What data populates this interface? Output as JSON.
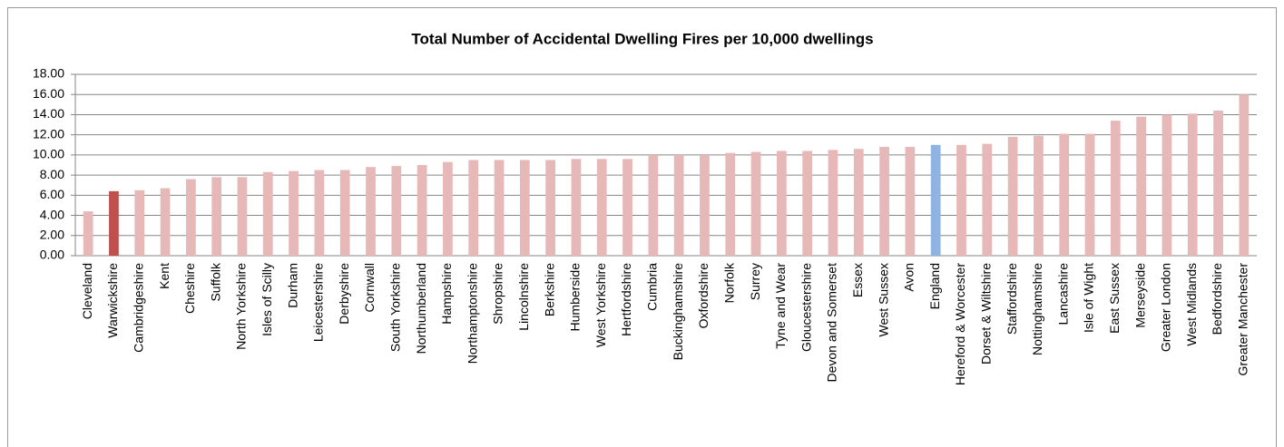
{
  "chart_data": {
    "type": "bar",
    "title": "Total Number of Accidental Dwelling Fires per 10,000 dwellings",
    "categories": [
      "Cleveland",
      "Warwickshire",
      "Cambridgeshire",
      "Kent",
      "Cheshire",
      "Suffolk",
      "North Yorkshire",
      "Isles of Scilly",
      "Durham",
      "Leicestershire",
      "Derbyshire",
      "Cornwall",
      "South Yorkshire",
      "Northumberland",
      "Hampshire",
      "Northamptonshire",
      "Shropshire",
      "Lincolnshire",
      "Berkshire",
      "Humberside",
      "West Yorkshire",
      "Hertfordshire",
      "Cumbria",
      "Buckinghamshire",
      "Oxfordshire",
      "Norfolk",
      "Surrey",
      "Tyne and Wear",
      "Gloucestershire",
      "Devon and Somerset",
      "Essex",
      "West Sussex",
      "Avon",
      "England",
      "Hereford & Worcester",
      "Dorset & Wiltshire",
      "Staffordshire",
      "Nottinghamshire",
      "Lancashire",
      "Isle of Wight",
      "East Sussex",
      "Merseyside",
      "Greater London",
      "West Midlands",
      "Bedfordshire",
      "Greater Manchester"
    ],
    "values": [
      4.4,
      6.4,
      6.5,
      6.7,
      7.6,
      7.8,
      7.8,
      8.3,
      8.4,
      8.5,
      8.5,
      8.8,
      8.9,
      9.0,
      9.3,
      9.5,
      9.5,
      9.5,
      9.5,
      9.6,
      9.6,
      9.6,
      10.0,
      10.0,
      10.0,
      10.2,
      10.3,
      10.4,
      10.4,
      10.5,
      10.6,
      10.8,
      10.8,
      11.0,
      11.0,
      11.1,
      11.8,
      11.9,
      12.1,
      12.1,
      13.4,
      13.8,
      14.0,
      14.1,
      14.4,
      16.0
    ],
    "colors": [
      "#e6b9b8",
      "#c0504d",
      "#e6b9b8",
      "#e6b9b8",
      "#e6b9b8",
      "#e6b9b8",
      "#e6b9b8",
      "#e6b9b8",
      "#e6b9b8",
      "#e6b9b8",
      "#e6b9b8",
      "#e6b9b8",
      "#e6b9b8",
      "#e6b9b8",
      "#e6b9b8",
      "#e6b9b8",
      "#e6b9b8",
      "#e6b9b8",
      "#e6b9b8",
      "#e6b9b8",
      "#e6b9b8",
      "#e6b9b8",
      "#e6b9b8",
      "#e6b9b8",
      "#e6b9b8",
      "#e6b9b8",
      "#e6b9b8",
      "#e6b9b8",
      "#e6b9b8",
      "#e6b9b8",
      "#e6b9b8",
      "#e6b9b8",
      "#e6b9b8",
      "#8db4e2",
      "#e6b9b8",
      "#e6b9b8",
      "#e6b9b8",
      "#e6b9b8",
      "#e6b9b8",
      "#e6b9b8",
      "#e6b9b8",
      "#e6b9b8",
      "#e6b9b8",
      "#e6b9b8",
      "#e6b9b8",
      "#e6b9b8"
    ],
    "ylim": [
      0,
      18
    ],
    "yticks": [
      {
        "value": 0,
        "label": "0.00"
      },
      {
        "value": 2,
        "label": "2.00"
      },
      {
        "value": 4,
        "label": "4.00"
      },
      {
        "value": 6,
        "label": "6.00"
      },
      {
        "value": 8,
        "label": "8.00"
      },
      {
        "value": 10,
        "label": "10.00"
      },
      {
        "value": 12,
        "label": "12.00"
      },
      {
        "value": 14,
        "label": "14.00"
      },
      {
        "value": 16,
        "label": "16.00"
      },
      {
        "value": 18,
        "label": "18.00"
      }
    ],
    "grid": true
  }
}
